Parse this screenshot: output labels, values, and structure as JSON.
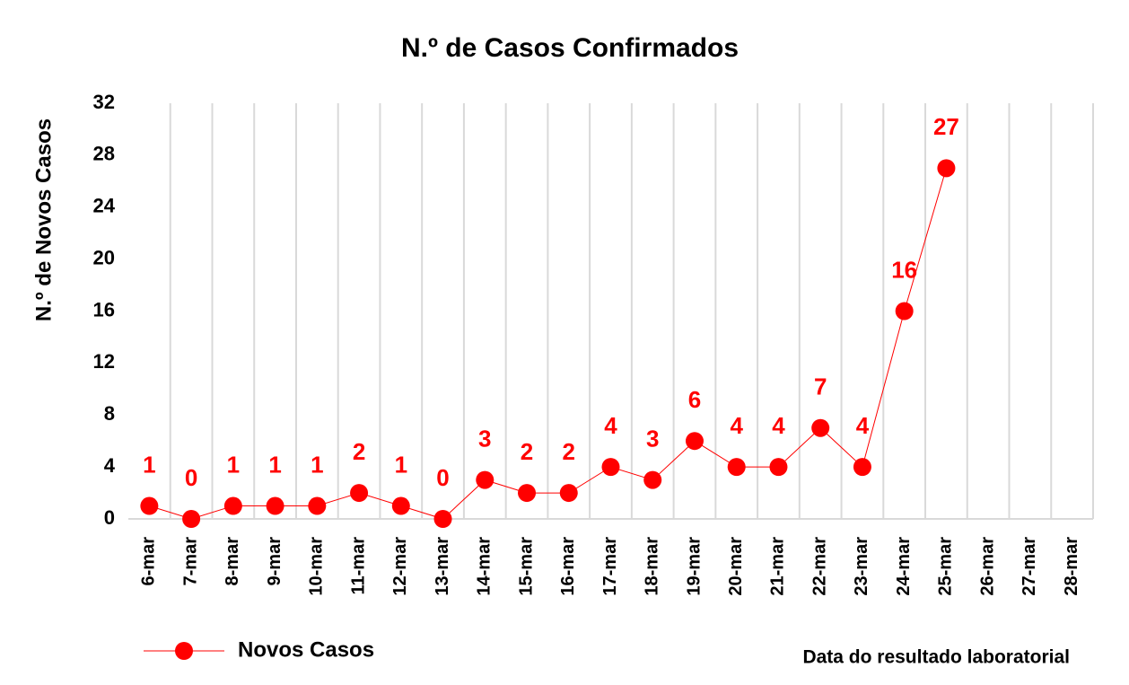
{
  "chart_data": {
    "type": "line",
    "title": "N.º de Casos Confirmados",
    "y_label": "N.º de Novos Casos",
    "x_label": "Data do resultado laboratorial",
    "categories": [
      "6-mar",
      "7-mar",
      "8-mar",
      "9-mar",
      "10-mar",
      "11-mar",
      "12-mar",
      "13-mar",
      "14-mar",
      "15-mar",
      "16-mar",
      "17-mar",
      "18-mar",
      "19-mar",
      "20-mar",
      "21-mar",
      "22-mar",
      "23-mar",
      "24-mar",
      "25-mar",
      "26-mar",
      "27-mar",
      "28-mar"
    ],
    "series": [
      {
        "name": "Novos Casos",
        "color": "#ff0000",
        "values": [
          1,
          0,
          1,
          1,
          1,
          2,
          1,
          0,
          3,
          2,
          2,
          4,
          3,
          6,
          4,
          4,
          7,
          4,
          16,
          27,
          null,
          null,
          null
        ]
      }
    ],
    "ylim": [
      0,
      32
    ],
    "yticks": [
      0,
      4,
      8,
      12,
      16,
      20,
      24,
      28,
      32
    ],
    "grid": "vertical",
    "legend": "bottom-left",
    "data_labels": true
  }
}
